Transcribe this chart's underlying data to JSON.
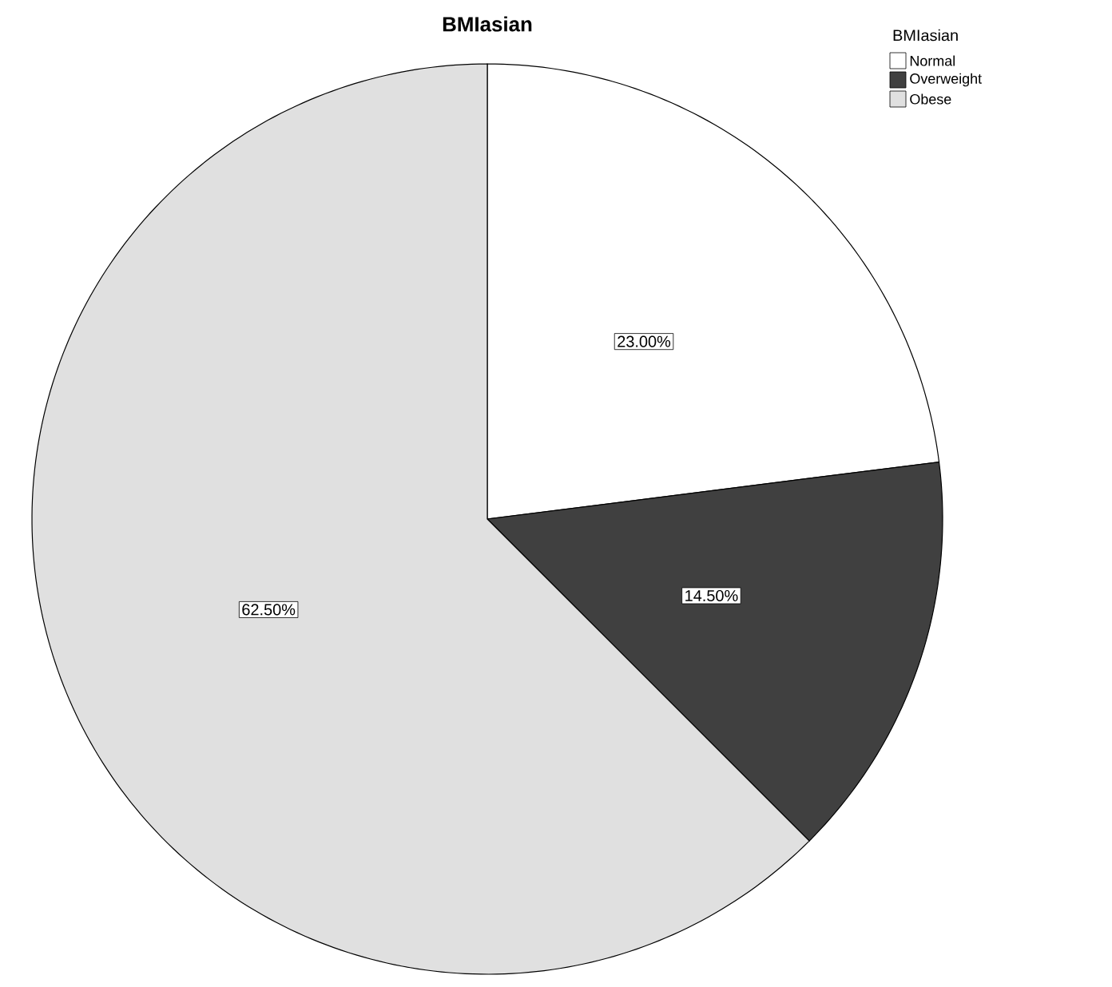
{
  "chart_data": {
    "type": "pie",
    "title": "BMIasian",
    "legend_title": "BMIasian",
    "categories": [
      "Normal",
      "Overweight",
      "Obese"
    ],
    "values": [
      23.0,
      14.5,
      62.5
    ],
    "colors": [
      "#ffffff",
      "#404040",
      "#e0e0e0"
    ],
    "value_labels": [
      "23.00%",
      "14.50%",
      "62.50%"
    ],
    "legend": "top right"
  }
}
